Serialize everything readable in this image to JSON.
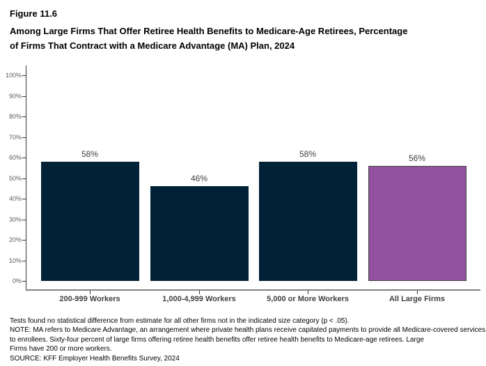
{
  "figure": {
    "label": "Figure 11.6",
    "title_line1": "Among Large Firms That Offer Retiree Health Benefits to Medicare-Age Retirees, Percentage",
    "title_line2": "of Firms That Contract with a Medicare Advantage (MA) Plan, 2024"
  },
  "chart_data": {
    "type": "bar",
    "categories": [
      "200-999 Workers",
      "1,000-4,999 Workers",
      "5,000 or More Workers",
      "All Large Firms"
    ],
    "values": [
      58,
      46,
      58,
      56
    ],
    "value_labels": [
      "58%",
      "46%",
      "58%",
      "56%"
    ],
    "bar_colors": [
      "#012136",
      "#012136",
      "#012136",
      "#9351A0"
    ],
    "bar_border_colors": [
      "#012136",
      "#012136",
      "#012136",
      "#454545"
    ],
    "title": "Among Large Firms That Offer Retiree Health Benefits to Medicare-Age Retirees, Percentage of Firms That Contract with a Medicare Advantage (MA) Plan, 2024",
    "xlabel": "",
    "ylabel": "",
    "ylim": [
      0,
      100
    ],
    "y_ticks": [
      "0%",
      "10%",
      "20%",
      "30%",
      "40%",
      "50%",
      "60%",
      "70%",
      "80%",
      "90%",
      "100%"
    ],
    "grid": false,
    "legend": "none",
    "accent_color_navy": "#012136",
    "accent_color_purple": "#9351A0"
  },
  "notes": {
    "lines": [
      "Tests found no statistical difference from estimate for all other firms not in the indicated size category (p < .05).",
      "NOTE: MA refers to Medicare Advantage, an arrangement where private health plans receive capitated payments to provide all Medicare-covered services",
      "to enrollees.  Sixty-four percent of large firms offering retiree health benefits offer retiree health benefits to Medicare-age retirees.  Large",
      "Firms have 200 or more workers.",
      "SOURCE: KFF Employer Health Benefits Survey, 2024"
    ]
  }
}
